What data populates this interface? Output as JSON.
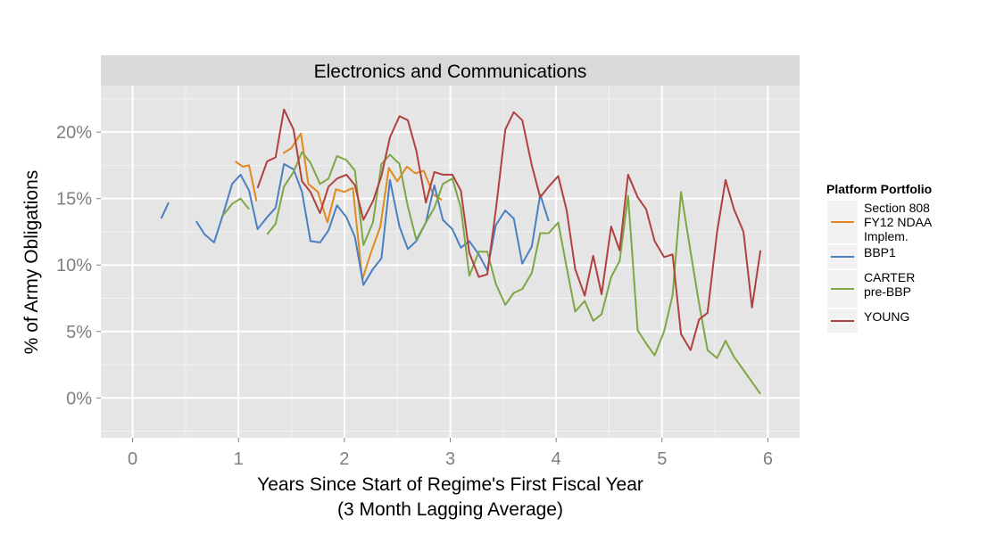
{
  "chart_data": {
    "type": "line",
    "title": "Electronics and Communications",
    "xlabel": "Years Since Start of Regime's First Fiscal Year",
    "xlabel_sub": "(3 Month Lagging Average)",
    "ylabel": "% of Army Obligations",
    "xlim": [
      -0.3,
      6.3
    ],
    "ylim": [
      -3,
      23.5
    ],
    "x_ticks": [
      0,
      1,
      2,
      3,
      4,
      5,
      6
    ],
    "x_tick_labels": [
      "0",
      "1",
      "2",
      "3",
      "4",
      "5",
      "6"
    ],
    "y_ticks": [
      0,
      5,
      10,
      15,
      20
    ],
    "y_tick_labels": [
      "0%",
      "5%",
      "10%",
      "15%",
      "20%"
    ],
    "grid": true,
    "legend_position": "right",
    "legend_title": "Platform Portfolio",
    "series": [
      {
        "name": "Section 808\nFY12 NDAA\nImplem.",
        "color": "#e08a1e",
        "segments": [
          [
            [
              0.97,
              17.8
            ],
            [
              1.04,
              17.4
            ],
            [
              1.1,
              17.5
            ],
            [
              1.17,
              14.8
            ]
          ],
          [
            [
              1.42,
              18.4
            ],
            [
              1.5,
              18.8
            ],
            [
              1.59,
              19.9
            ],
            [
              1.66,
              16.1
            ],
            [
              1.75,
              15.5
            ],
            [
              1.84,
              13.2
            ],
            [
              1.92,
              15.7
            ],
            [
              2.0,
              15.5
            ],
            [
              2.08,
              15.8
            ],
            [
              2.17,
              8.9
            ],
            [
              2.25,
              10.9
            ],
            [
              2.34,
              12.9
            ],
            [
              2.42,
              17.3
            ],
            [
              2.5,
              16.3
            ],
            [
              2.59,
              17.4
            ],
            [
              2.67,
              16.9
            ],
            [
              2.75,
              17.1
            ],
            [
              2.84,
              15.3
            ],
            [
              2.92,
              14.9
            ]
          ]
        ]
      },
      {
        "name": "BBP1",
        "color": "#4a7fc1",
        "segments": [
          [
            [
              0.27,
              13.5
            ],
            [
              0.34,
              14.7
            ]
          ],
          [
            [
              0.6,
              13.3
            ],
            [
              0.68,
              12.3
            ],
            [
              0.77,
              11.7
            ],
            [
              0.85,
              13.7
            ],
            [
              0.94,
              16.1
            ],
            [
              1.02,
              16.8
            ],
            [
              1.1,
              15.6
            ],
            [
              1.18,
              12.7
            ],
            [
              1.27,
              13.6
            ],
            [
              1.35,
              14.3
            ],
            [
              1.43,
              17.6
            ],
            [
              1.52,
              17.2
            ],
            [
              1.6,
              15.5
            ],
            [
              1.68,
              11.8
            ],
            [
              1.77,
              11.7
            ],
            [
              1.85,
              12.6
            ],
            [
              1.93,
              14.5
            ],
            [
              2.02,
              13.6
            ],
            [
              2.1,
              12.1
            ],
            [
              2.18,
              8.5
            ],
            [
              2.27,
              9.7
            ],
            [
              2.35,
              10.5
            ],
            [
              2.43,
              16.4
            ],
            [
              2.52,
              12.9
            ],
            [
              2.6,
              11.2
            ],
            [
              2.68,
              11.8
            ],
            [
              2.77,
              13.2
            ],
            [
              2.85,
              16.0
            ],
            [
              2.93,
              13.4
            ],
            [
              3.02,
              12.7
            ],
            [
              3.1,
              11.3
            ],
            [
              3.18,
              11.8
            ],
            [
              3.27,
              10.8
            ],
            [
              3.35,
              9.6
            ],
            [
              3.43,
              13.0
            ],
            [
              3.52,
              14.1
            ],
            [
              3.6,
              13.5
            ],
            [
              3.68,
              10.1
            ],
            [
              3.77,
              11.4
            ],
            [
              3.85,
              15.3
            ],
            [
              3.93,
              13.3
            ]
          ]
        ]
      },
      {
        "name": "CARTER\npre-BBP",
        "color": "#7ea644",
        "segments": [
          [
            [
              0.85,
              13.7
            ],
            [
              0.94,
              14.6
            ],
            [
              1.02,
              15.0
            ],
            [
              1.1,
              14.2
            ]
          ],
          [
            [
              1.27,
              12.3
            ],
            [
              1.35,
              13.1
            ],
            [
              1.43,
              15.9
            ],
            [
              1.52,
              17.0
            ],
            [
              1.6,
              18.5
            ],
            [
              1.68,
              17.7
            ],
            [
              1.77,
              16.1
            ],
            [
              1.85,
              16.5
            ],
            [
              1.93,
              18.2
            ],
            [
              2.02,
              17.9
            ],
            [
              2.1,
              17.1
            ],
            [
              2.18,
              11.5
            ],
            [
              2.27,
              13.2
            ],
            [
              2.35,
              17.6
            ],
            [
              2.43,
              18.3
            ],
            [
              2.52,
              17.6
            ],
            [
              2.6,
              14.4
            ],
            [
              2.68,
              11.9
            ],
            [
              2.77,
              13.2
            ],
            [
              2.85,
              14.3
            ],
            [
              2.93,
              16.1
            ],
            [
              3.02,
              16.5
            ],
            [
              3.1,
              14.3
            ],
            [
              3.18,
              9.2
            ],
            [
              3.27,
              11.0
            ],
            [
              3.35,
              11.0
            ],
            [
              3.43,
              8.6
            ],
            [
              3.52,
              7.0
            ],
            [
              3.6,
              7.9
            ],
            [
              3.68,
              8.2
            ],
            [
              3.77,
              9.4
            ],
            [
              3.85,
              12.4
            ],
            [
              3.93,
              12.4
            ],
            [
              4.02,
              13.2
            ],
            [
              4.1,
              9.8
            ],
            [
              4.18,
              6.5
            ],
            [
              4.27,
              7.3
            ],
            [
              4.35,
              5.8
            ],
            [
              4.43,
              6.3
            ],
            [
              4.52,
              9.1
            ],
            [
              4.6,
              10.3
            ],
            [
              4.68,
              15.2
            ],
            [
              4.77,
              5.1
            ],
            [
              4.85,
              4.1
            ],
            [
              4.93,
              3.2
            ],
            [
              5.02,
              5.0
            ],
            [
              5.1,
              7.7
            ],
            [
              5.18,
              15.5
            ],
            [
              5.27,
              11.0
            ],
            [
              5.35,
              7.1
            ],
            [
              5.43,
              3.6
            ],
            [
              5.52,
              3.0
            ],
            [
              5.6,
              4.3
            ],
            [
              5.68,
              3.1
            ],
            [
              5.77,
              2.1
            ],
            [
              5.85,
              1.2
            ],
            [
              5.93,
              0.3
            ]
          ]
        ]
      },
      {
        "name": "YOUNG",
        "color": "#b0413e",
        "segments": [
          [
            [
              1.18,
              15.8
            ],
            [
              1.27,
              17.8
            ],
            [
              1.35,
              18.1
            ],
            [
              1.43,
              21.7
            ],
            [
              1.52,
              20.2
            ],
            [
              1.6,
              16.3
            ],
            [
              1.68,
              15.5
            ],
            [
              1.77,
              13.9
            ],
            [
              1.85,
              15.9
            ],
            [
              1.93,
              16.5
            ],
            [
              2.02,
              16.8
            ],
            [
              2.1,
              16.0
            ],
            [
              2.18,
              13.4
            ],
            [
              2.27,
              14.8
            ],
            [
              2.35,
              16.7
            ],
            [
              2.43,
              19.6
            ],
            [
              2.52,
              21.2
            ],
            [
              2.6,
              20.9
            ],
            [
              2.68,
              18.6
            ],
            [
              2.77,
              14.7
            ],
            [
              2.85,
              17.0
            ],
            [
              2.93,
              16.8
            ],
            [
              3.02,
              16.8
            ],
            [
              3.1,
              15.6
            ],
            [
              3.18,
              10.9
            ],
            [
              3.27,
              9.1
            ],
            [
              3.35,
              9.3
            ],
            [
              3.43,
              14.1
            ],
            [
              3.52,
              20.2
            ],
            [
              3.6,
              21.5
            ],
            [
              3.68,
              20.9
            ],
            [
              3.77,
              17.5
            ],
            [
              3.85,
              15.1
            ],
            [
              3.93,
              15.9
            ],
            [
              4.02,
              16.7
            ],
            [
              4.1,
              14.1
            ],
            [
              4.18,
              9.7
            ],
            [
              4.27,
              7.7
            ],
            [
              4.35,
              10.7
            ],
            [
              4.43,
              7.8
            ],
            [
              4.52,
              12.9
            ],
            [
              4.6,
              11.1
            ],
            [
              4.68,
              16.8
            ],
            [
              4.77,
              15.1
            ],
            [
              4.85,
              14.2
            ],
            [
              4.93,
              11.8
            ],
            [
              5.02,
              10.6
            ],
            [
              5.1,
              10.8
            ],
            [
              5.18,
              4.8
            ],
            [
              5.27,
              3.6
            ],
            [
              5.35,
              5.9
            ],
            [
              5.43,
              6.4
            ],
            [
              5.52,
              12.5
            ],
            [
              5.6,
              16.4
            ],
            [
              5.68,
              14.2
            ],
            [
              5.77,
              12.5
            ],
            [
              5.85,
              6.8
            ],
            [
              5.93,
              11.1
            ]
          ]
        ]
      }
    ]
  }
}
